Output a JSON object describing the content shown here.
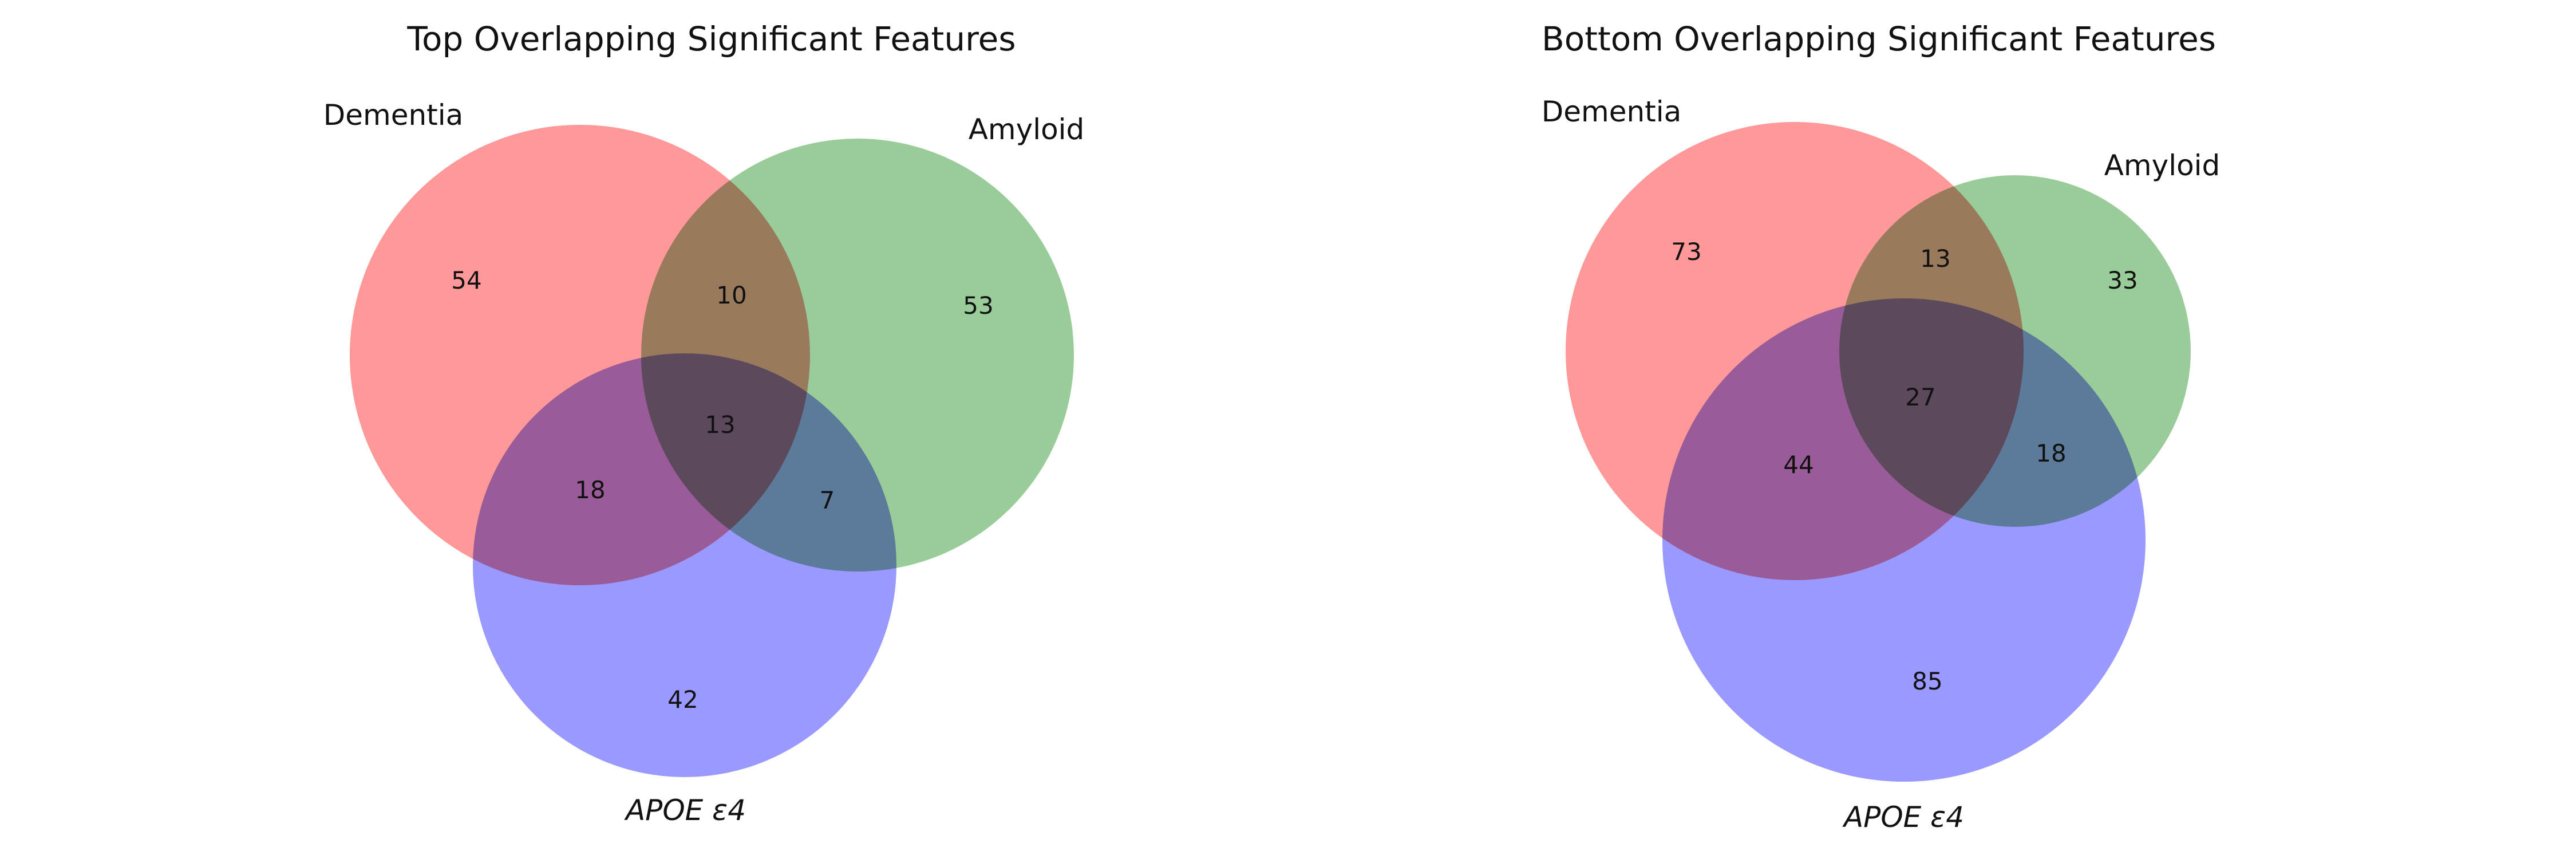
{
  "diagrams": [
    {
      "title": "Top Overlapping Significant Features",
      "sets": {
        "dementia": {
          "label": "Dementia",
          "color": "#ff9999"
        },
        "amyloid": {
          "label": "Amyloid",
          "color": "#99cc99"
        },
        "apoe": {
          "label": "APOE ε4",
          "color": "#9999ff"
        }
      },
      "regions": {
        "dementia_only": 54,
        "amyloid_only": 53,
        "apoe_only": 42,
        "dementia_amyloid": 10,
        "dementia_apoe": 18,
        "amyloid_apoe": 7,
        "all_three": 13
      }
    },
    {
      "title": "Bottom Overlapping Significant Features",
      "sets": {
        "dementia": {
          "label": "Dementia",
          "color": "#ff9999"
        },
        "amyloid": {
          "label": "Amyloid",
          "color": "#99cc99"
        },
        "apoe": {
          "label": "APOE ε4",
          "color": "#9999ff"
        }
      },
      "regions": {
        "dementia_only": 73,
        "amyloid_only": 33,
        "apoe_only": 85,
        "dementia_amyloid": 13,
        "dementia_apoe": 44,
        "amyloid_apoe": 18,
        "all_three": 27
      }
    }
  ]
}
